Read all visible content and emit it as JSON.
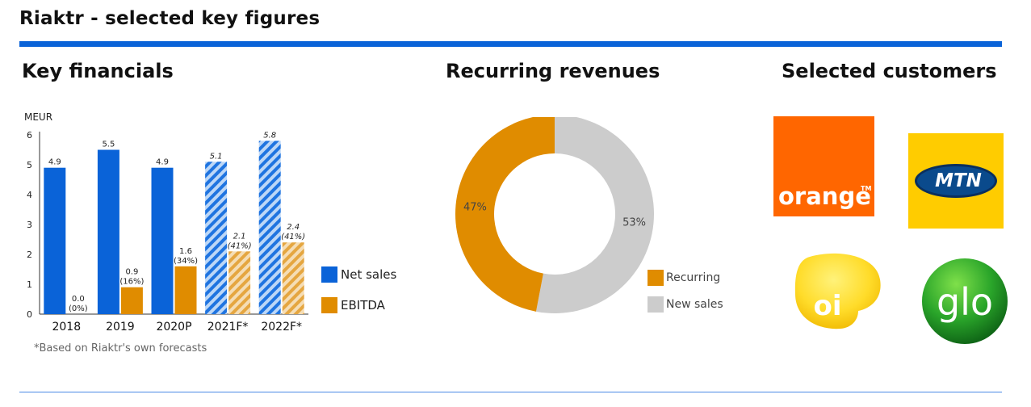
{
  "header": {
    "title": "Riaktr - selected key figures"
  },
  "sections": {
    "key_financials": "Key financials",
    "recurring_revenues": "Recurring revenues",
    "selected_customers": "Selected customers"
  },
  "footnote": "*Based on Riaktr's own forecasts",
  "colors": {
    "blue": "#0a63d8",
    "orange": "#e08c00",
    "grey": "#cccccc"
  },
  "chart_data": [
    {
      "type": "bar",
      "ylabel": "MEUR",
      "ylim": [
        0,
        6
      ],
      "yticks": [
        "0",
        "1",
        "2",
        "3",
        "4",
        "5",
        "6"
      ],
      "categories": [
        "2018",
        "2019",
        "2020P",
        "2021F*",
        "2022F*"
      ],
      "series": [
        {
          "name": "Net sales",
          "values": [
            4.9,
            5.5,
            4.9,
            5.1,
            5.8
          ],
          "labels": [
            [
              "4.9"
            ],
            [
              "5.5"
            ],
            [
              "4.9"
            ],
            [
              "5.1"
            ],
            [
              "5.8"
            ]
          ],
          "hatched": [
            false,
            false,
            false,
            true,
            true
          ]
        },
        {
          "name": "EBITDA",
          "values": [
            0.0,
            0.9,
            1.6,
            2.1,
            2.4
          ],
          "labels": [
            [
              "0.0",
              "(0%)"
            ],
            [
              "0.9",
              "(16%)"
            ],
            [
              "1.6",
              "(34%)"
            ],
            [
              "2.1",
              "(41%)"
            ],
            [
              "2.4",
              "(41%)"
            ]
          ],
          "hatched": [
            false,
            false,
            false,
            true,
            true
          ]
        }
      ],
      "legend_position": "right",
      "grid": false
    },
    {
      "type": "pie",
      "donut": true,
      "categories": [
        "Recurring",
        "New sales"
      ],
      "values": [
        47,
        53
      ],
      "labels": [
        "47%",
        "53%"
      ],
      "legend_position": "bottom-right"
    }
  ],
  "customers": [
    {
      "name": "orange",
      "logo_text": "orange",
      "tm": "TM"
    },
    {
      "name": "MTN",
      "logo_text": "MTN"
    },
    {
      "name": "oi",
      "logo_text": "oi"
    },
    {
      "name": "glo",
      "logo_text": "glo"
    }
  ]
}
